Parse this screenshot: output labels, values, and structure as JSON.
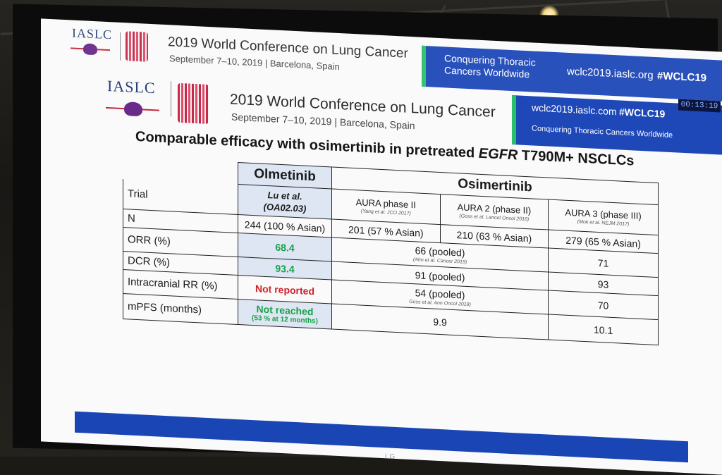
{
  "header_back": {
    "org": "IASLC",
    "title": "2019 World Conference on Lung Cancer",
    "date": "September 7–10, 2019 | Barcelona, Spain",
    "tagline": "Conquering Thoracic Cancers Worldwide",
    "site": "wclc2019.iaslc.org",
    "hashtag": "#WCLC19"
  },
  "header_front": {
    "org": "IASLC",
    "title": "2019 World Conference on Lung Cancer",
    "date": "September 7–10, 2019 | Barcelona, Spain",
    "site": "wclc2019.iaslc.com",
    "hashtag": "#WCLC19",
    "tagline": "Conquering Thoracic Cancers Worldwide",
    "clock": "00:13:19"
  },
  "slide": {
    "title_prefix": "Comparable efficacy with osimertinib in pretreated",
    "title_italic": "EGFR",
    "title_suffix": "T790M+ NSCLCs"
  },
  "table": {
    "olmetinib_header": "Olmetinib",
    "osimertinib_header": "Osimertinib",
    "trial_label": "Trial",
    "lu_name": "Lu et al.",
    "lu_code": "(OA02.03)",
    "aura_p2": "AURA phase II",
    "aura_p2_cite": "(Yang et al. JCO 2017)",
    "aura2": "AURA 2 (phase II)",
    "aura2_cite": "(Goss et al. Lancet Oncol 2016)",
    "aura3": "AURA 3 (phase III)",
    "aura3_cite": "(Mok et al. NEJM 2017)",
    "rows": {
      "n": {
        "label": "N",
        "olme": "244 (100 % Asian)",
        "p2": "201 (57 % Asian)",
        "a2": "210 (63 % Asian)",
        "a3": "279 (65 % Asian)"
      },
      "orr": {
        "label": "ORR (%)",
        "olme": "68.4",
        "pooled": "66 (pooled)",
        "pooled_cite": "(Ahn et al. Cancer 2019)",
        "a3": "71"
      },
      "dcr": {
        "label": "DCR (%)",
        "olme": "93.4",
        "pooled": "91 (pooled)",
        "a3": "93"
      },
      "icrr": {
        "label": "Intracranial RR (%)",
        "olme": "Not reported",
        "pooled": "54 (pooled)",
        "pooled_cite": "Goss et al. Ann Oncol 2018)",
        "a3": "70"
      },
      "mpfs": {
        "label": "mPFS (months)",
        "olme": "Not reached",
        "olme_sub": "(53 % at 12 months)",
        "pooled": "9.9",
        "a3": "10.1"
      }
    }
  },
  "tv_brand": "LG",
  "colors": {
    "accent_blue": "#1e48b8",
    "green": "#1aa14a",
    "red": "#d2202a",
    "cell_shade": "#dde6f2"
  }
}
